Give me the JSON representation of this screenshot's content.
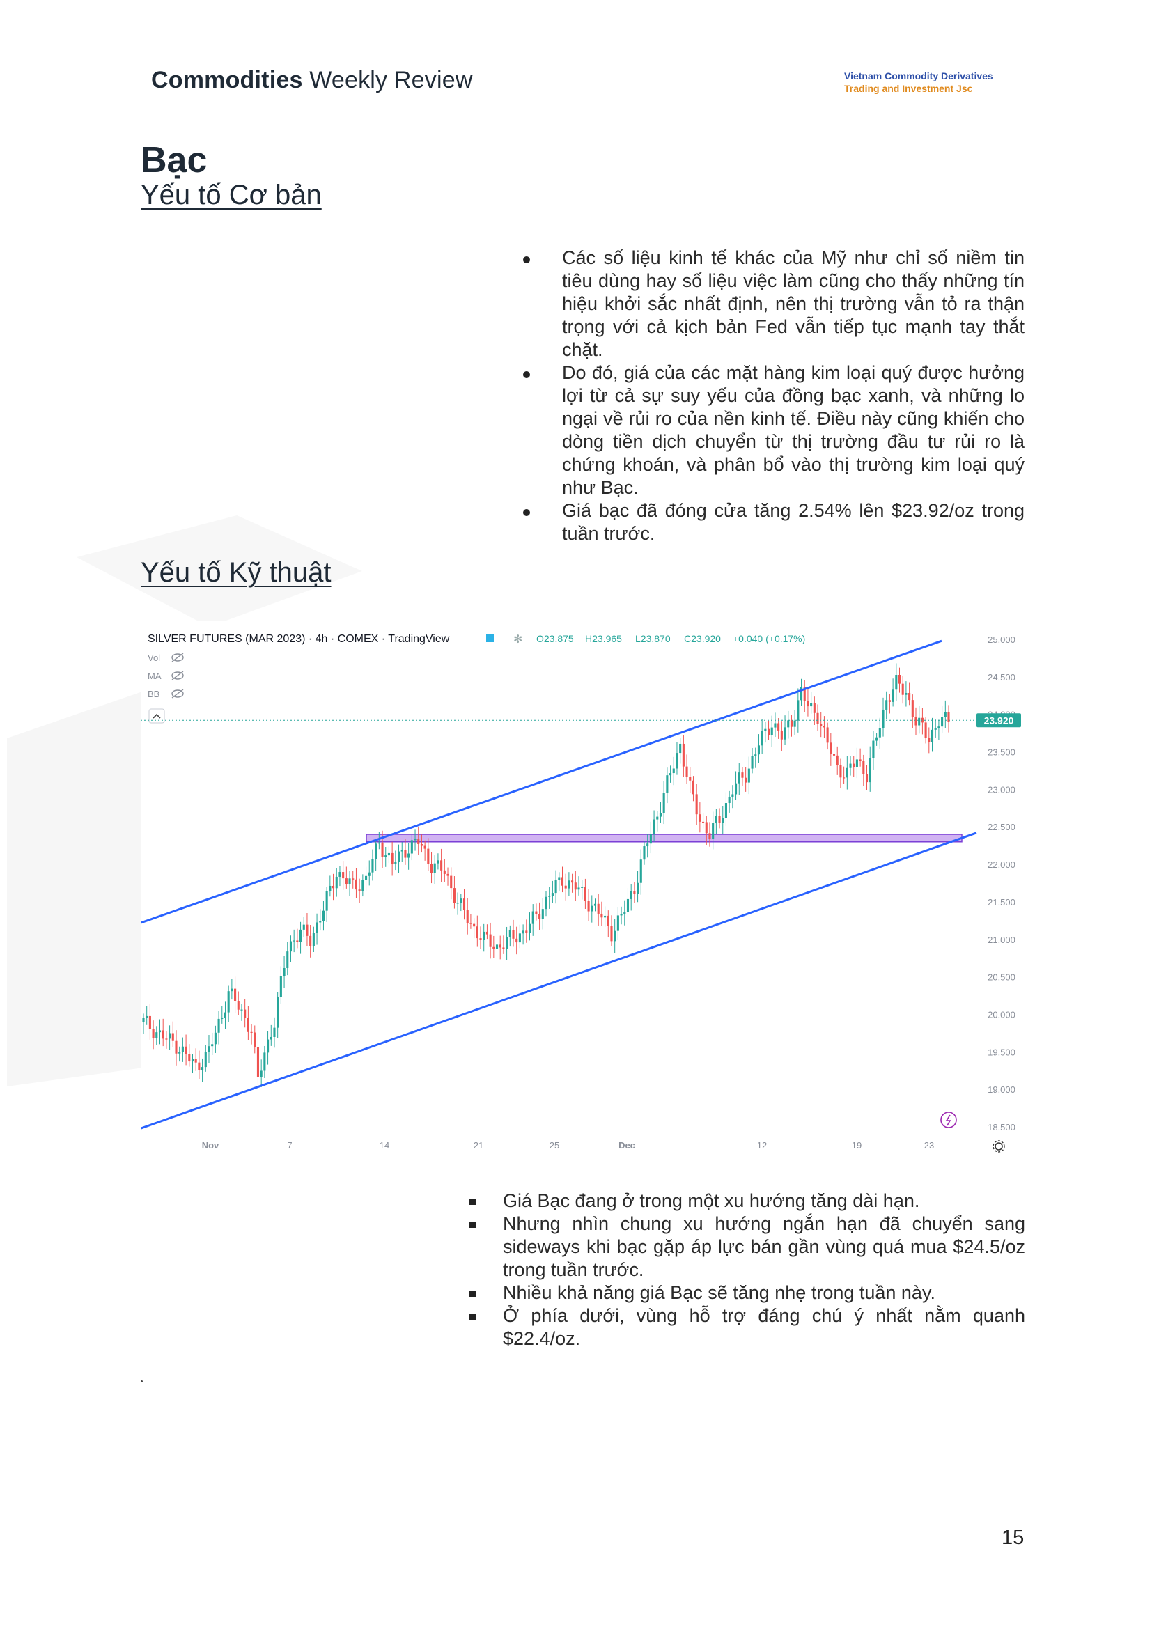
{
  "header": {
    "title_bold": "Commodities",
    "title_rest": " Weekly Review",
    "company_line1": "Vietnam Commodity Derivatives",
    "company_line2": "Trading and Investment Jsc"
  },
  "section": {
    "title": "Bạc",
    "fundamentals_heading": "Yếu tố Cơ bản",
    "technical_heading": "Yếu tố Kỹ thuật"
  },
  "fundamentals_bullets": [
    "Các số liệu kinh tế khác của Mỹ như chỉ số niềm tin tiêu dùng hay số liệu việc làm cũng cho thấy những tín hiệu khởi sắc nhất định, nên thị trường vẫn tỏ ra thận trọng với cả kịch bản Fed vẫn tiếp tục mạnh tay thắt chặt.",
    "Do đó, giá của các mặt hàng kim loại quý được hưởng lợi từ cả sự suy yếu của đồng bạc xanh, và những lo ngại về rủi ro của nền kinh tế. Điều này cũng khiến cho dòng tiền dịch chuyển từ thị trường đầu tư rủi ro là chứng khoán, và phân bổ vào thị trường kim loại quý như Bạc.",
    "Giá bạc đã đóng cửa tăng 2.54% lên $23.92/oz trong tuần trước."
  ],
  "technical_bullets": [
    "Giá Bạc đang ở trong một xu hướng tăng dài hạn.",
    "Nhưng nhìn chung xu hướng ngắn hạn đã chuyển sang sideways khi bạc gặp áp lực bán gần vùng quá mua $24.5/oz trong tuần trước.",
    "Nhiều khả năng giá Bạc sẽ tăng nhẹ trong tuần này.",
    "Ở phía dưới, vùng hỗ trợ đáng chú ý nhất nằm quanh $22.4/oz."
  ],
  "chart_data": {
    "type": "candlestick",
    "symbol_line": "SILVER FUTURES (MAR 2023) · 4h · COMEX · TradingView",
    "ohlc_text": {
      "o_label": "O",
      "o": "23.875",
      "h_label": "H",
      "h": "23.965",
      "l_label": "L",
      "l": "23.870",
      "c_label": "C",
      "c": "23.920",
      "chg": "+0.040 (+0.17%)"
    },
    "indicators": [
      "Vol",
      "MA",
      "BB"
    ],
    "last_price_label": "23.920",
    "last_price": 23.92,
    "y_ticks": [
      "25.000",
      "24.500",
      "24.000",
      "23.500",
      "23.000",
      "22.500",
      "22.000",
      "21.500",
      "21.000",
      "20.500",
      "20.000",
      "19.500",
      "19.000",
      "18.500"
    ],
    "ylim": [
      18.5,
      25.0
    ],
    "x_ticks": [
      "Nov",
      "7",
      "14",
      "21",
      "25",
      "Dec",
      "12",
      "19",
      "23"
    ],
    "colors": {
      "up": "#26a69a",
      "down": "#ef5350",
      "trendline": "#2962ff",
      "zone_fill": "#d1b3f2",
      "zone_stroke": "#7b3fd6",
      "price_tag": "#26a69a"
    },
    "anchors": [
      [
        0,
        19.9
      ],
      [
        6,
        19.7
      ],
      [
        10,
        19.6
      ],
      [
        16,
        19.3
      ],
      [
        20,
        19.5
      ],
      [
        24,
        20.0
      ],
      [
        26,
        20.3
      ],
      [
        29,
        20.1
      ],
      [
        33,
        19.8
      ],
      [
        35,
        19.1
      ],
      [
        37,
        19.5
      ],
      [
        40,
        19.9
      ],
      [
        44,
        20.9
      ],
      [
        48,
        21.1
      ],
      [
        51,
        21.0
      ],
      [
        55,
        21.4
      ],
      [
        59,
        21.9
      ],
      [
        64,
        21.7
      ],
      [
        68,
        21.8
      ],
      [
        72,
        22.3
      ],
      [
        76,
        22.0
      ],
      [
        80,
        22.2
      ],
      [
        84,
        22.3
      ],
      [
        88,
        22.0
      ],
      [
        92,
        21.9
      ],
      [
        96,
        21.5
      ],
      [
        100,
        21.2
      ],
      [
        104,
        21.0
      ],
      [
        108,
        20.9
      ],
      [
        112,
        21.0
      ],
      [
        116,
        21.1
      ],
      [
        120,
        21.3
      ],
      [
        124,
        21.6
      ],
      [
        128,
        21.8
      ],
      [
        132,
        21.7
      ],
      [
        136,
        21.5
      ],
      [
        140,
        21.3
      ],
      [
        143,
        21.1
      ],
      [
        146,
        21.3
      ],
      [
        150,
        21.7
      ],
      [
        154,
        22.3
      ],
      [
        158,
        22.8
      ],
      [
        161,
        23.2
      ],
      [
        164,
        23.6
      ],
      [
        167,
        23.0
      ],
      [
        170,
        22.6
      ],
      [
        173,
        22.4
      ],
      [
        176,
        22.6
      ],
      [
        180,
        23.0
      ],
      [
        184,
        23.2
      ],
      [
        188,
        23.6
      ],
      [
        192,
        23.9
      ],
      [
        195,
        23.7
      ],
      [
        198,
        23.9
      ],
      [
        201,
        24.3
      ],
      [
        203,
        24.1
      ],
      [
        206,
        24.0
      ],
      [
        209,
        23.6
      ],
      [
        212,
        23.3
      ],
      [
        215,
        23.2
      ],
      [
        218,
        23.4
      ],
      [
        221,
        23.2
      ],
      [
        224,
        23.7
      ],
      [
        227,
        24.2
      ],
      [
        230,
        24.4
      ],
      [
        233,
        24.3
      ],
      [
        236,
        23.9
      ],
      [
        240,
        23.7
      ],
      [
        243,
        23.9
      ],
      [
        246,
        23.92
      ]
    ]
  },
  "page_number": "15"
}
